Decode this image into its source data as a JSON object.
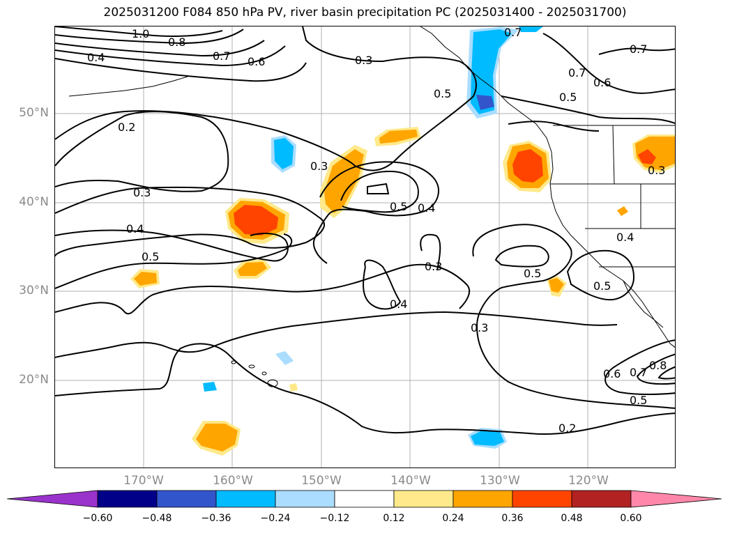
{
  "title": "2025031200 F084 850 hPa PV, river basin precipitation PC (2025031400 - 2025031700)",
  "map": {
    "lat_labels": [
      "50°N",
      "40°N",
      "30°N",
      "20°N"
    ],
    "lon_labels": [
      "170°W",
      "160°W",
      "150°W",
      "140°W",
      "130°W",
      "120°W"
    ],
    "contour_labels": [
      "1.0",
      "0.8",
      "0.7",
      "0.6",
      "0.4",
      "0.3",
      "0.7",
      "0.7",
      "0.5",
      "0.7",
      "0.6",
      "0.5",
      "0.2",
      "0.3",
      "0.3",
      "0.5",
      "0.4",
      "0.4",
      "0.5",
      "0.3",
      "0.4",
      "0.3",
      "0.5",
      "0.5",
      "0.4",
      "0.6",
      "0.7",
      "0.8",
      "0.5",
      "0.2",
      "0.3"
    ]
  },
  "colorbar": {
    "colors": [
      "#9a33cc",
      "#000088",
      "#3355cc",
      "#00bbff",
      "#aaddff",
      "#ffffff",
      "#ffe98a",
      "#ffa500",
      "#ff4400",
      "#b22222",
      "#ff88aa"
    ],
    "labels": [
      "−0.60",
      "−0.48",
      "−0.36",
      "−0.24",
      "−0.12",
      "0.12",
      "0.24",
      "0.36",
      "0.48",
      "0.60"
    ]
  }
}
